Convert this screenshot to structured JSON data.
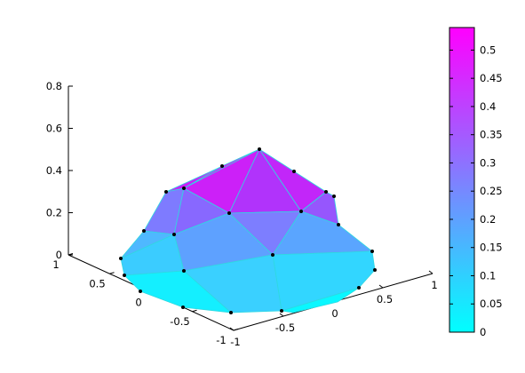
{
  "chart_data": {
    "type": "surface",
    "title": "",
    "xlabel": "",
    "ylabel": "",
    "zlabel": "",
    "z_axis": {
      "ticks": [
        "0",
        "0.2",
        "0.4",
        "0.6",
        "0.8"
      ],
      "range": [
        0,
        0.8
      ]
    },
    "x_axis": {
      "ticks": [
        "-1",
        "-0.5",
        "0",
        "0.5",
        "1"
      ],
      "range": [
        -1,
        1
      ]
    },
    "y_axis": {
      "ticks": [
        "-1",
        "-0.5",
        "0",
        "0.5",
        "1"
      ],
      "range": [
        -1,
        1
      ]
    },
    "grid": false,
    "colorbar": {
      "ticks": [
        "0",
        "0.05",
        "0.1",
        "0.15",
        "0.2",
        "0.25",
        "0.3",
        "0.35",
        "0.4",
        "0.45",
        "0.5"
      ],
      "range": [
        0,
        0.54
      ],
      "colormap": "cool",
      "color_low": "#00ffff",
      "color_high": "#ff00ff",
      "placement": "right"
    },
    "nodes_approx": [
      {
        "x": 0,
        "y": 0,
        "z": 0.54
      },
      {
        "x": -0.35,
        "y": 0.3,
        "z": 0.45
      },
      {
        "x": 0.3,
        "y": 0.05,
        "z": 0.3
      },
      {
        "x": -0.1,
        "y": -0.35,
        "z": 0.22
      },
      {
        "x": -0.6,
        "y": 0.35,
        "z": 0.2
      },
      {
        "x": 0.5,
        "y": -0.2,
        "z": 0.15
      },
      {
        "x": -0.5,
        "y": -0.4,
        "z": 0.1
      },
      {
        "x": -0.8,
        "y": 0.0,
        "z": 0.0
      },
      {
        "x": 0.8,
        "y": -0.4,
        "z": 0.0
      },
      {
        "x": 0.0,
        "y": -0.9,
        "z": 0.0
      }
    ]
  }
}
